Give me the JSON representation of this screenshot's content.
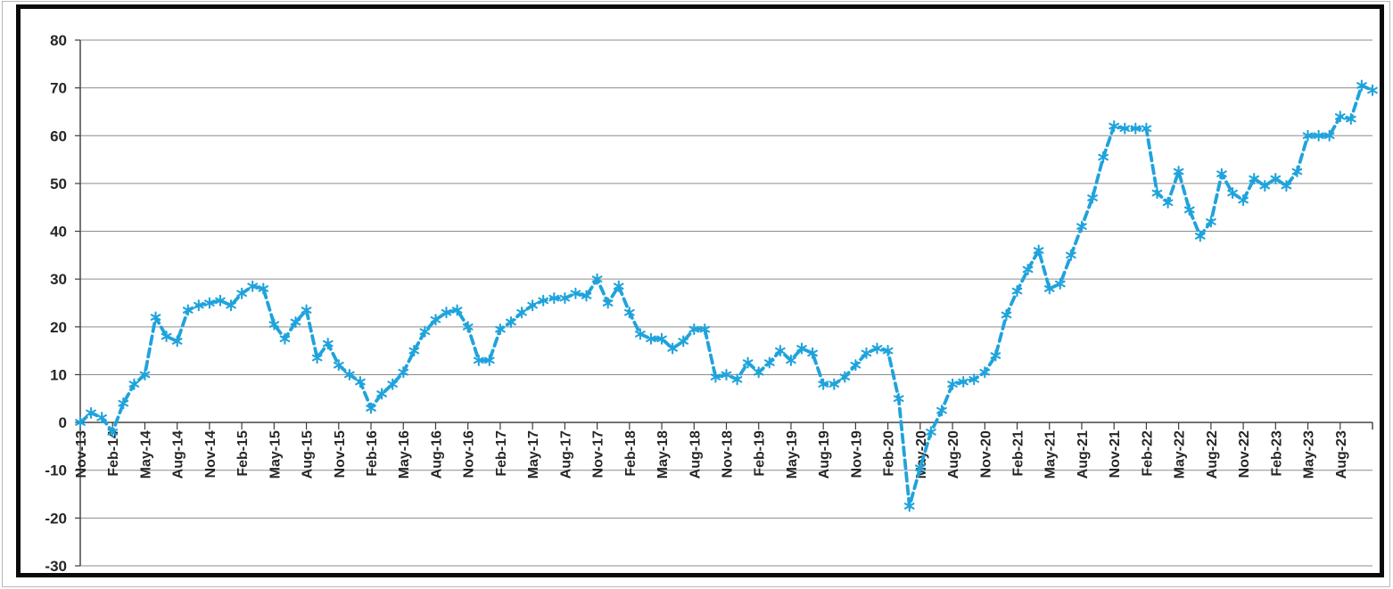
{
  "window": {
    "background": "#ffffff",
    "outer_frame_color": "#b8b8b8",
    "chart_border_color": "#0a0a0a"
  },
  "chart_data": {
    "type": "line",
    "title": "",
    "legend": "none",
    "grid": "horizontal",
    "line_color": "#1fa3dc",
    "line_style": "dashed",
    "marker": "asterisk",
    "gridline_color": "#8c8c8c",
    "axis_color": "#3b3b3b",
    "tick_label_color": "#262626",
    "ylim": [
      -30,
      80
    ],
    "ytick_step": 10,
    "yticks": [
      80,
      70,
      60,
      50,
      40,
      30,
      20,
      10,
      0,
      -10,
      -20,
      -30
    ],
    "x_label_every_n_months": 3,
    "x_tick_labels": [
      "Nov-13",
      "Feb-14",
      "May-14",
      "Aug-14",
      "Nov-14",
      "Feb-15",
      "May-15",
      "Aug-15",
      "Nov-15",
      "Feb-16",
      "May-16",
      "Aug-16",
      "Nov-16",
      "Feb-17",
      "May-17",
      "Aug-17",
      "Nov-17",
      "Feb-18",
      "May-18",
      "Aug-18",
      "Nov-18",
      "Feb-19",
      "May-19",
      "Aug-19",
      "Nov-19",
      "Feb-20",
      "May-20",
      "Aug-20",
      "Nov-20",
      "Feb-21",
      "May-21",
      "Aug-21",
      "Nov-21",
      "Feb-22",
      "May-22",
      "Aug-22",
      "Nov-22",
      "Feb-23",
      "May-23",
      "Aug-23"
    ],
    "x": [
      "Nov-13",
      "Dec-13",
      "Jan-14",
      "Feb-14",
      "Mar-14",
      "Apr-14",
      "May-14",
      "Jun-14",
      "Jul-14",
      "Aug-14",
      "Sep-14",
      "Oct-14",
      "Nov-14",
      "Dec-14",
      "Jan-15",
      "Feb-15",
      "Mar-15",
      "Apr-15",
      "May-15",
      "Jun-15",
      "Jul-15",
      "Aug-15",
      "Sep-15",
      "Oct-15",
      "Nov-15",
      "Dec-15",
      "Jan-16",
      "Feb-16",
      "Mar-16",
      "Apr-16",
      "May-16",
      "Jun-16",
      "Jul-16",
      "Aug-16",
      "Sep-16",
      "Oct-16",
      "Nov-16",
      "Dec-16",
      "Jan-17",
      "Feb-17",
      "Mar-17",
      "Apr-17",
      "May-17",
      "Jun-17",
      "Jul-17",
      "Aug-17",
      "Sep-17",
      "Oct-17",
      "Nov-17",
      "Dec-17",
      "Jan-18",
      "Feb-18",
      "Mar-18",
      "Apr-18",
      "May-18",
      "Jun-18",
      "Jul-18",
      "Aug-18",
      "Sep-18",
      "Oct-18",
      "Nov-18",
      "Dec-18",
      "Jan-19",
      "Feb-19",
      "Mar-19",
      "Apr-19",
      "May-19",
      "Jun-19",
      "Jul-19",
      "Aug-19",
      "Sep-19",
      "Oct-19",
      "Nov-19",
      "Dec-19",
      "Jan-20",
      "Feb-20",
      "Mar-20",
      "Apr-20",
      "May-20",
      "Jun-20",
      "Jul-20",
      "Aug-20",
      "Sep-20",
      "Oct-20",
      "Nov-20",
      "Dec-20",
      "Jan-21",
      "Feb-21",
      "Mar-21",
      "Apr-21",
      "May-21",
      "Jun-21",
      "Jul-21",
      "Aug-21",
      "Sep-21",
      "Oct-21",
      "Nov-21",
      "Dec-21",
      "Jan-22",
      "Feb-22",
      "Mar-22",
      "Apr-22",
      "May-22",
      "Jun-22",
      "Jul-22",
      "Aug-22",
      "Sep-22",
      "Oct-22",
      "Nov-22",
      "Dec-22",
      "Jan-23",
      "Feb-23",
      "Mar-23",
      "Apr-23",
      "May-23",
      "Jun-23",
      "Jul-23",
      "Aug-23",
      "Sep-23",
      "Oct-23",
      "Nov-23"
    ],
    "values": [
      0,
      2,
      1,
      -2,
      4,
      8,
      10,
      22,
      18,
      17,
      23.5,
      24.5,
      25,
      25.5,
      24.5,
      27,
      28.5,
      28,
      20.5,
      17.5,
      21,
      23.5,
      13.5,
      16.5,
      12,
      10,
      8.5,
      3,
      6,
      8,
      10.5,
      15,
      19,
      21.5,
      23,
      23.5,
      20,
      13,
      13,
      19.5,
      21,
      23,
      24.5,
      25.5,
      26,
      26,
      27,
      26.5,
      30,
      25,
      28.5,
      23,
      18.5,
      17.5,
      17.5,
      15.5,
      17,
      19.5,
      19.5,
      9.5,
      10,
      9,
      12.5,
      10.5,
      12.5,
      15,
      13,
      15.5,
      14.5,
      8,
      8,
      9.5,
      12,
      14.5,
      15.5,
      15,
      5,
      -17.5,
      -9.5,
      -2,
      2.5,
      8,
      8.5,
      9,
      10.5,
      14,
      22.5,
      27.5,
      32,
      36,
      28,
      29,
      35,
      41,
      47,
      55.5,
      62,
      61.5,
      61.5,
      61.5,
      48,
      46,
      52.5,
      44.5,
      39,
      42,
      52,
      48,
      46.5,
      51,
      49.5,
      51,
      49.5,
      52.5,
      60,
      60,
      60,
      64,
      63.5,
      70.5,
      69.5
    ]
  }
}
